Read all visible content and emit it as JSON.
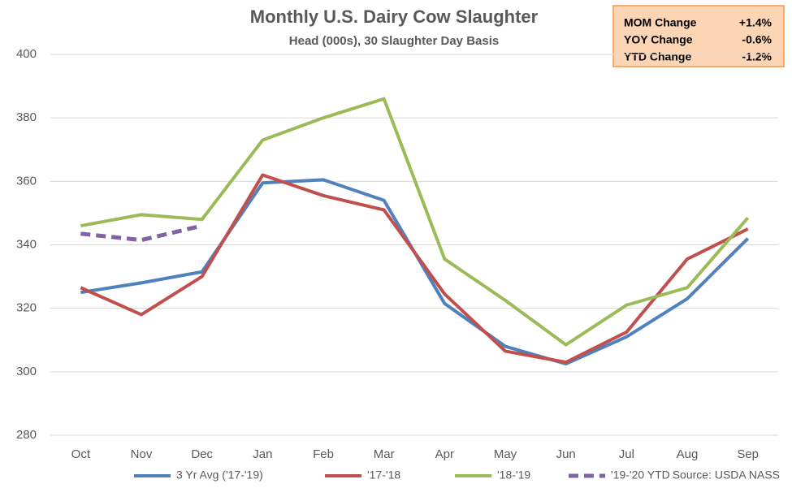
{
  "chart_data": {
    "type": "line",
    "title": "Monthly U.S. Dairy Cow Slaughter",
    "subtitle": "Head (000s), 30 Slaughter Day Basis",
    "source": "Source: USDA NASS",
    "categories": [
      "Oct",
      "Nov",
      "Dec",
      "Jan",
      "Feb",
      "Mar",
      "Apr",
      "May",
      "Jun",
      "Jul",
      "Aug",
      "Sep"
    ],
    "series": [
      {
        "name": "3 Yr Avg ('17-'19)",
        "color": "#4f81bd",
        "dashed": false,
        "values": [
          325,
          328,
          331.5,
          359.5,
          360.5,
          354,
          321.5,
          308,
          302.5,
          311,
          323,
          342
        ]
      },
      {
        "name": "'17-'18",
        "color": "#c0504d",
        "dashed": false,
        "values": [
          326.5,
          318,
          330,
          362,
          355.5,
          351,
          324.5,
          306.5,
          303,
          312.5,
          335.5,
          345
        ]
      },
      {
        "name": "'18-'19",
        "color": "#9bbb59",
        "dashed": false,
        "values": [
          346,
          349.5,
          348,
          373,
          380,
          386,
          335.5,
          322.5,
          308.5,
          321,
          326.5,
          348.5
        ]
      },
      {
        "name": "'19-'20 YTD",
        "color": "#8064a2",
        "dashed": true,
        "values": [
          343.5,
          341.5,
          346,
          null,
          null,
          null,
          null,
          null,
          null,
          null,
          null,
          null
        ]
      }
    ],
    "ylim": [
      280,
      400
    ],
    "yticks": [
      280,
      300,
      320,
      340,
      360,
      380,
      400
    ],
    "grid": true,
    "legend": "bottom",
    "annotations": [
      {
        "label": "MOM Change",
        "value": "+1.4%"
      },
      {
        "label": "YOY Change",
        "value": "-0.6%"
      },
      {
        "label": "YTD Change",
        "value": "-1.2%"
      }
    ]
  }
}
